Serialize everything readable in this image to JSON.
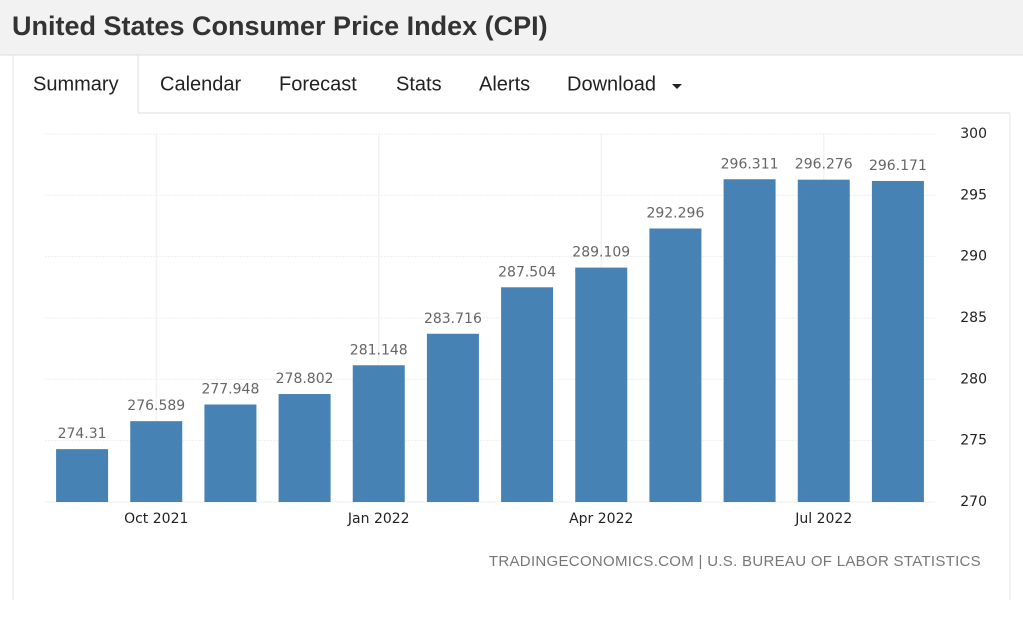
{
  "header": {
    "title": "United States Consumer Price Index (CPI)"
  },
  "tabs": [
    "Summary",
    "Calendar",
    "Forecast",
    "Stats",
    "Alerts",
    "Download"
  ],
  "chart_data": {
    "type": "bar",
    "categories": [
      null,
      "Oct 2021",
      null,
      null,
      "Jan 2022",
      null,
      null,
      "Apr 2022",
      null,
      null,
      "Jul 2022",
      null
    ],
    "values": [
      274.31,
      276.589,
      277.948,
      278.802,
      281.148,
      283.716,
      287.504,
      289.109,
      292.296,
      296.311,
      296.276,
      296.171
    ],
    "color": "#4682b4",
    "ylim": [
      270,
      300
    ],
    "yticks": [
      270,
      275,
      280,
      285,
      290,
      295,
      300
    ],
    "grid": true
  },
  "source": "TRADINGECONOMICS.COM | U.S. BUREAU OF LABOR STATISTICS"
}
